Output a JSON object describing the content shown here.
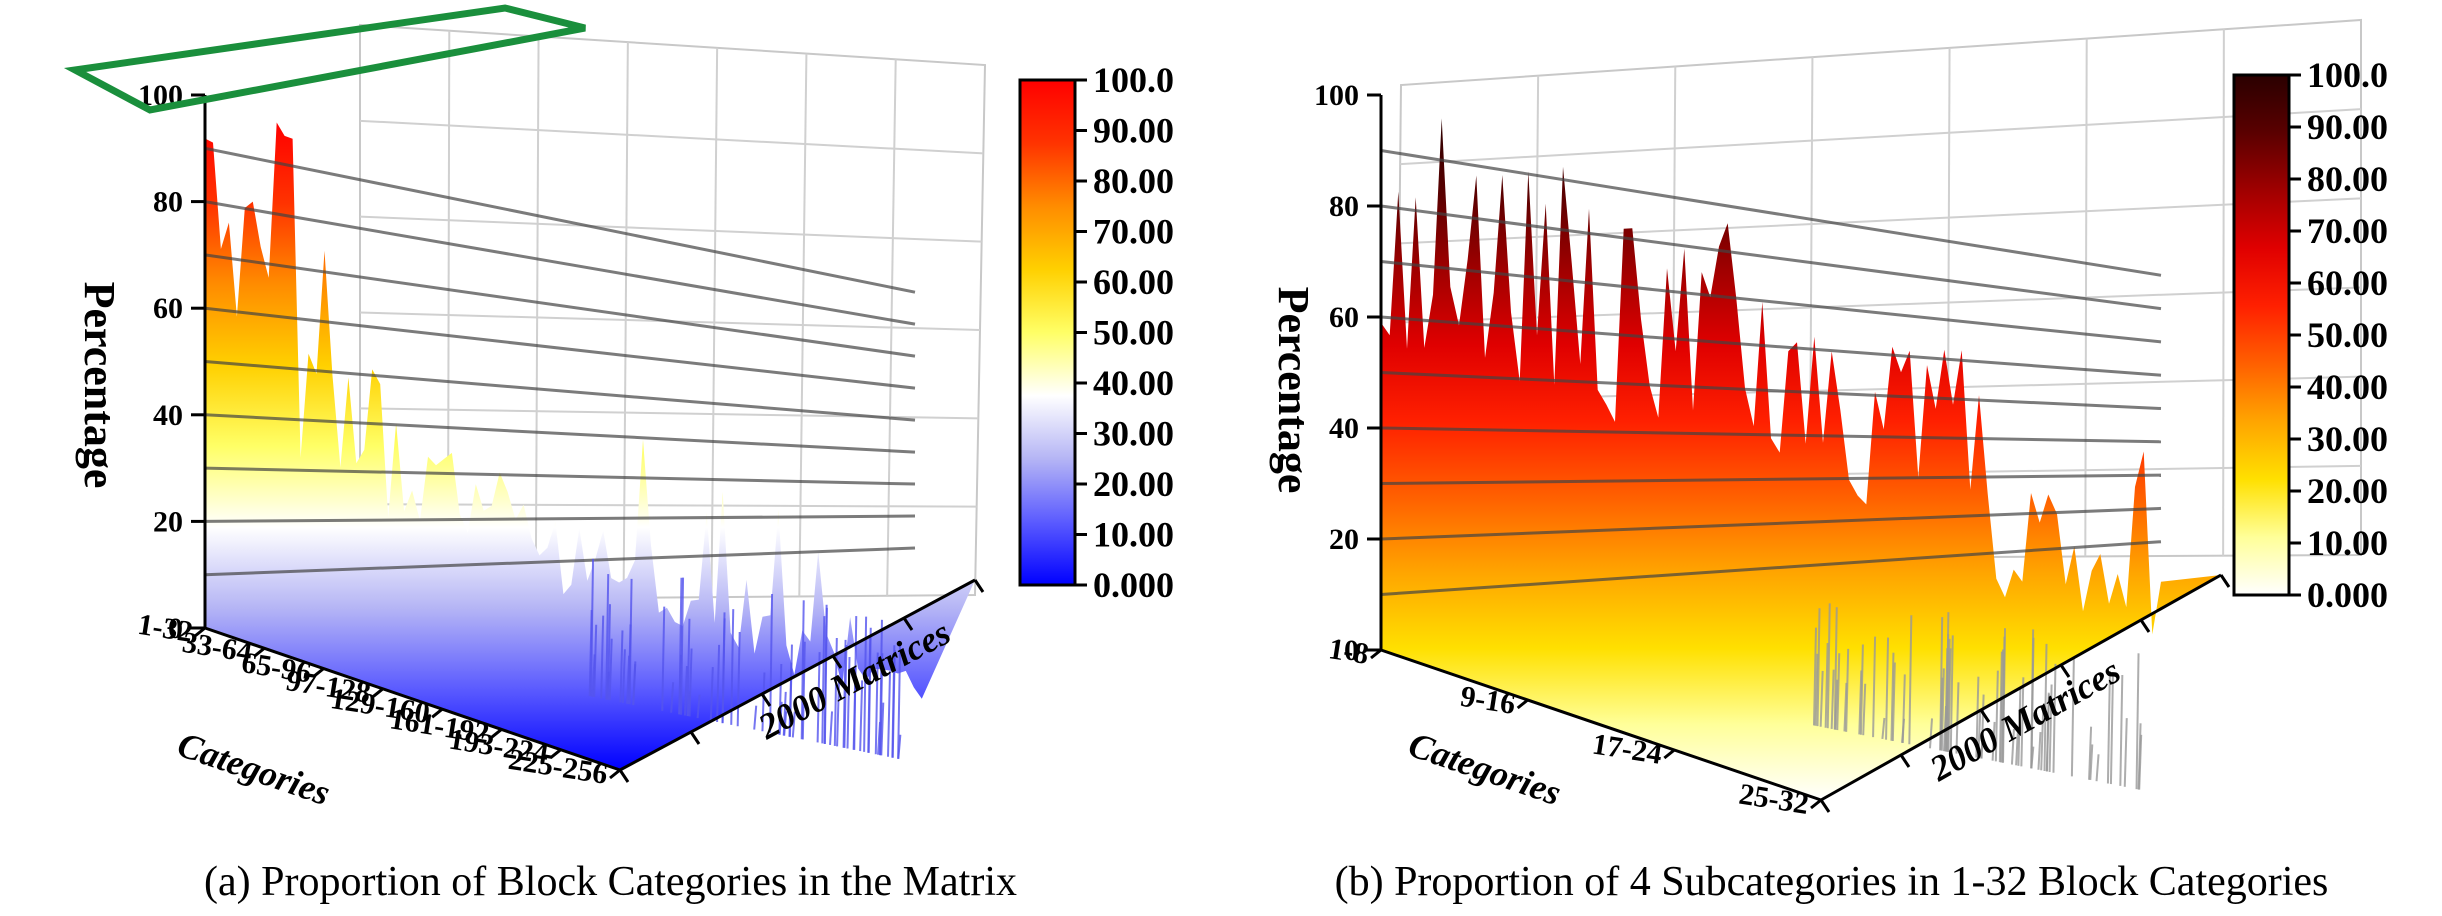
{
  "chart_data": [
    {
      "type": "surface3d",
      "caption": "(a) Proportion of Block Categories in the Matrix",
      "ylabel": "Percentage",
      "y_ticks": [
        "0",
        "20",
        "40",
        "60",
        "80",
        "100"
      ],
      "ylim": [
        0,
        100
      ],
      "xlabel": "Categories",
      "categories": [
        "1-32",
        "33-64",
        "65-96",
        "97-128",
        "129-160",
        "161-192",
        "193-224",
        "225-256"
      ],
      "zlabel": "2000 Matrices",
      "colorbar_ticks": [
        "100.0",
        "90.00",
        "80.00",
        "70.00",
        "60.00",
        "50.00",
        "40.00",
        "30.00",
        "20.00",
        "10.00",
        "0.000"
      ],
      "colormap": [
        "#0000ff",
        "#5b5bff",
        "#b5b5f5",
        "#ffffff",
        "#ffff66",
        "#ffd000",
        "#ff8c00",
        "#ff3300",
        "#ff0000"
      ],
      "highlight_color": "#1a8f3c",
      "approx_peak_by_category": [
        100,
        60,
        50,
        45,
        40,
        35,
        30,
        25
      ]
    },
    {
      "type": "surface3d",
      "caption": "(b) Proportion of 4 Subcategories in 1-32 Block Categories",
      "ylabel": "Percentage",
      "y_ticks": [
        "0",
        "20",
        "40",
        "60",
        "80",
        "100"
      ],
      "ylim": [
        0,
        100
      ],
      "xlabel": "Categories",
      "categories": [
        "1-8",
        "9-16",
        "17-24",
        "25-32"
      ],
      "zlabel": "2000 Matrices",
      "colorbar_ticks": [
        "100.0",
        "90.00",
        "80.00",
        "70.00",
        "60.00",
        "50.00",
        "40.00",
        "30.00",
        "20.00",
        "10.00",
        "0.000"
      ],
      "colormap": [
        "#ffffff",
        "#ffff99",
        "#ffe000",
        "#ffa500",
        "#ff6000",
        "#ff2000",
        "#e00000",
        "#a00000",
        "#5a0000",
        "#2a0000"
      ],
      "approx_peak_by_category": [
        100,
        95,
        90,
        70
      ]
    }
  ]
}
